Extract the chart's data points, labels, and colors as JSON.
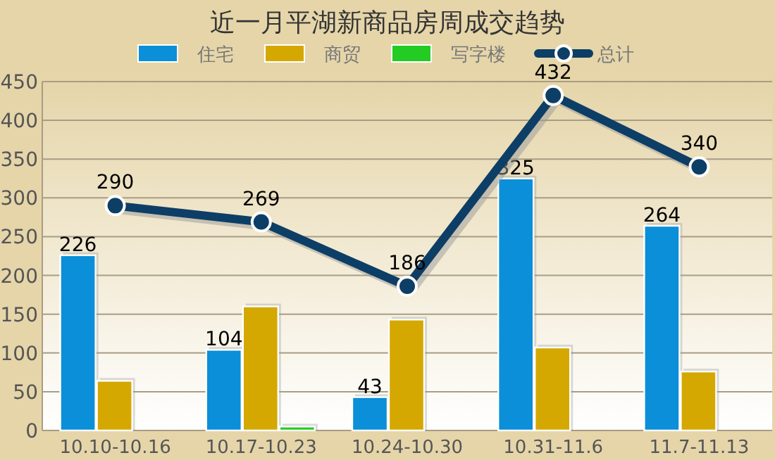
{
  "chart_data": {
    "type": "bar",
    "title": "近一月平湖新商品房周成交趋势",
    "categories": [
      "10.10-10.16",
      "10.17-10.23",
      "10.24-10.30",
      "10.31-11.6",
      "11.7-11.13"
    ],
    "series": [
      {
        "name": "住宅",
        "color": "#0a8fd8",
        "values": [
          226,
          104,
          43,
          325,
          264
        ],
        "value_labels": [
          "226",
          "104",
          "43",
          "325",
          "264"
        ]
      },
      {
        "name": "商贸",
        "color": "#d4a800",
        "values": [
          64,
          160,
          143,
          107,
          76
        ]
      },
      {
        "name": "写字楼",
        "color": "#22cc22",
        "values": [
          0,
          5,
          0,
          0,
          0
        ]
      },
      {
        "name": "总计",
        "type": "line",
        "color": "#0d3e66",
        "marker": "circle",
        "values": [
          290,
          269,
          186,
          432,
          340
        ],
        "value_labels": [
          "290",
          "269",
          "186",
          "432",
          "340"
        ]
      }
    ],
    "ylim": [
      0,
      450
    ],
    "yticks": [
      0,
      50,
      100,
      150,
      200,
      250,
      300,
      350,
      400,
      450
    ],
    "grid": "y",
    "legend": "top"
  }
}
